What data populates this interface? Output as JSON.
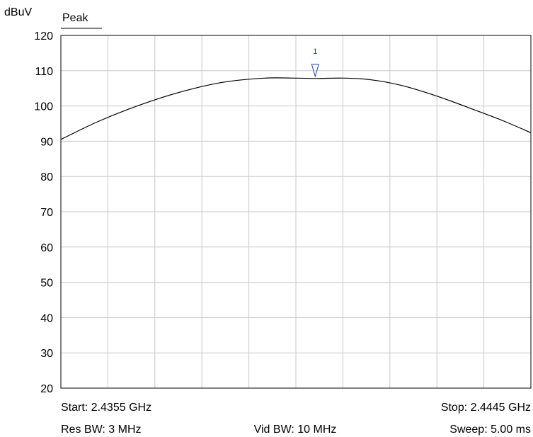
{
  "header": {
    "unit_label": "dBuV",
    "trace_label": "Peak"
  },
  "footer": {
    "start": "Start: 2.4355 GHz",
    "stop": "Stop: 2.4445 GHz",
    "res_bw": "Res BW: 3 MHz",
    "vid_bw": "Vid BW: 10 MHz",
    "sweep": "Sweep: 5.00 ms"
  },
  "chart_data": {
    "type": "line",
    "xlim": [
      2.4355,
      2.4445
    ],
    "ylim": [
      20,
      120
    ],
    "yticks": [
      120,
      110,
      100,
      90,
      80,
      70,
      60,
      50,
      40,
      30,
      20
    ],
    "grid": true,
    "series": [
      {
        "x": [
          2.4355,
          2.4362,
          2.437,
          2.4378,
          2.4386,
          2.4394,
          2.44,
          2.4404,
          2.4409,
          2.4414,
          2.442,
          2.4427,
          2.4434,
          2.444,
          2.4445
        ],
        "y": [
          90.5,
          95.5,
          100.2,
          104.0,
          106.7,
          107.9,
          107.9,
          107.8,
          107.9,
          107.5,
          105.9,
          102.8,
          99.0,
          95.6,
          92.4
        ]
      }
    ],
    "markers": [
      {
        "label": "1",
        "x": 2.44037,
        "y": 108.0
      }
    ],
    "colors": {
      "trace": "#000000",
      "grid": "#c8c8c8",
      "marker": "#1f3fa6",
      "frame": "#000000"
    }
  }
}
